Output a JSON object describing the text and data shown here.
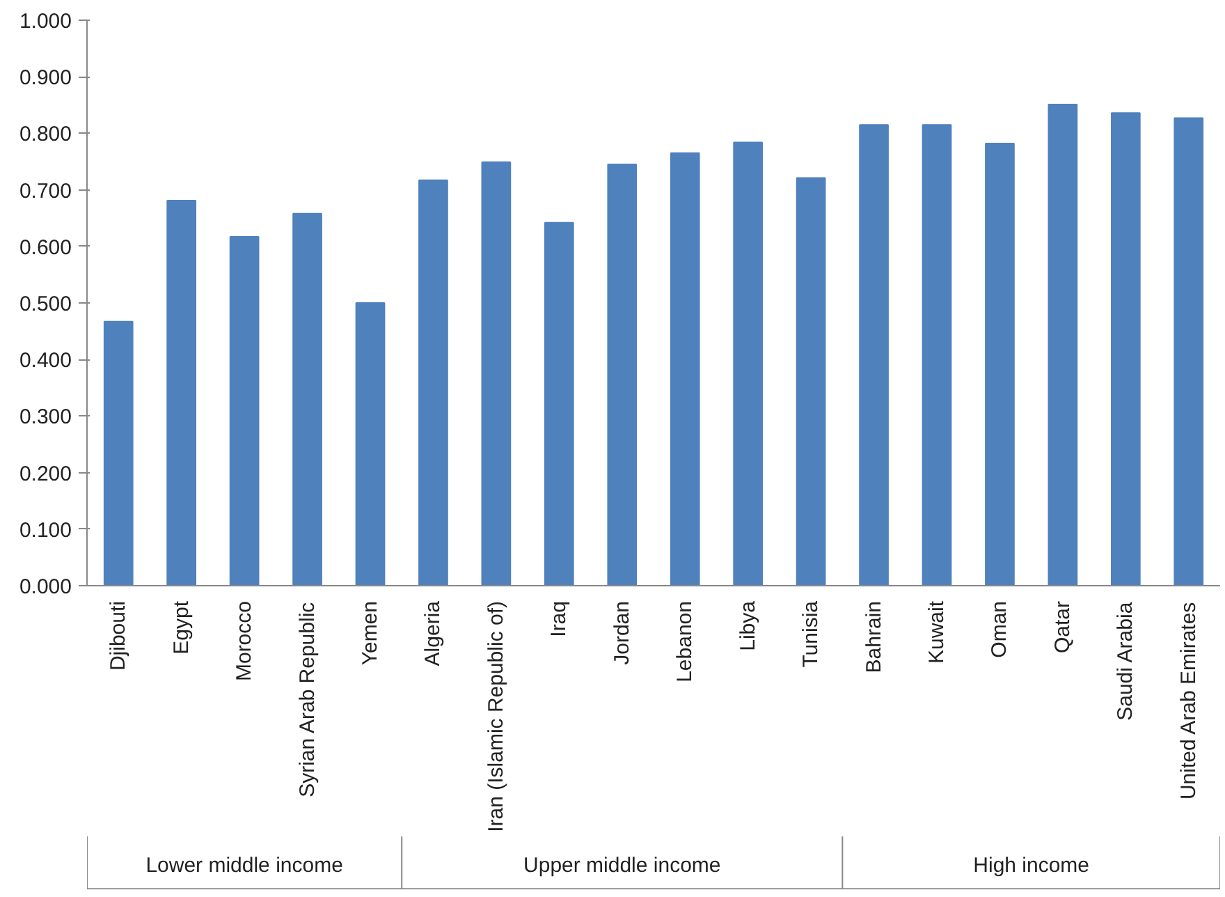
{
  "chart_data": {
    "type": "bar",
    "categories": [
      "Djibouti",
      "Egypt",
      "Morocco",
      "Syrian Arab Republic",
      "Yemen",
      "Algeria",
      "Iran (Islamic Republic of)",
      "Iraq",
      "Jordan",
      "Lebanon",
      "Libya",
      "Tunisia",
      "Bahrain",
      "Kuwait",
      "Oman",
      "Qatar",
      "Saudi Arabia",
      "United Arab Emirates"
    ],
    "values": [
      0.467,
      0.681,
      0.617,
      0.658,
      0.5,
      0.717,
      0.749,
      0.642,
      0.745,
      0.765,
      0.784,
      0.721,
      0.815,
      0.815,
      0.782,
      0.851,
      0.836,
      0.827
    ],
    "color": "#4f81bd",
    "ylim": [
      0,
      1
    ],
    "yticks": [
      {
        "value": 0,
        "label": "0.000"
      },
      {
        "value": 0.1,
        "label": "0.100"
      },
      {
        "value": 0.2,
        "label": "0.200"
      },
      {
        "value": 0.3,
        "label": "0.300"
      },
      {
        "value": 0.4,
        "label": "0.400"
      },
      {
        "value": 0.5,
        "label": "0.500"
      },
      {
        "value": 0.6,
        "label": "0.600"
      },
      {
        "value": 0.7,
        "label": "0.700"
      },
      {
        "value": 0.8,
        "label": "0.800"
      },
      {
        "value": 0.9,
        "label": "0.900"
      },
      {
        "value": 1,
        "label": "1.000"
      }
    ],
    "annotations": [
      "Lower middle income",
      "Upper middle income",
      "High income"
    ],
    "grid": false
  }
}
